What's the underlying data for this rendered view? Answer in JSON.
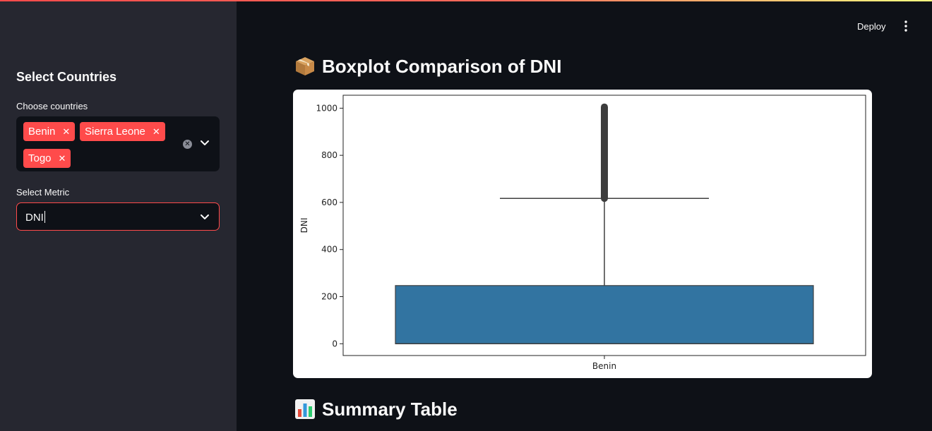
{
  "header": {
    "deploy_label": "Deploy"
  },
  "sidebar": {
    "title": "Select Countries",
    "countries_label": "Choose countries",
    "selected_countries": [
      "Benin",
      "Sierra Leone",
      "Togo"
    ],
    "metric_label": "Select Metric",
    "metric_value": "DNI"
  },
  "main": {
    "boxplot_heading": "Boxplot Comparison of DNI",
    "summary_heading": "Summary Table"
  },
  "icons": {
    "chip_remove": "close-icon",
    "clear_all": "clear-icon",
    "dropdown": "chevron-down-icon",
    "menu": "vertical-dots-icon",
    "box_emoji": "package-icon",
    "chart_emoji": "bar-chart-icon"
  },
  "colors": {
    "accent": "#ff4b4b",
    "box_fill": "#3274a1",
    "sidebar_bg": "#262730",
    "main_bg": "#0e1117"
  },
  "chart_data": {
    "type": "boxplot",
    "xlabel": "",
    "ylabel": "DNI",
    "categories": [
      "Benin"
    ],
    "ylim": [
      -50,
      1055
    ],
    "yticks": [
      0,
      200,
      400,
      600,
      800,
      1000
    ],
    "boxes": [
      {
        "category": "Benin",
        "min": 0,
        "q1": 0,
        "median": 0,
        "q3": 247,
        "whisker_high": 617,
        "outliers_min": 617,
        "outliers_max": 1005
      }
    ],
    "grid": false
  }
}
